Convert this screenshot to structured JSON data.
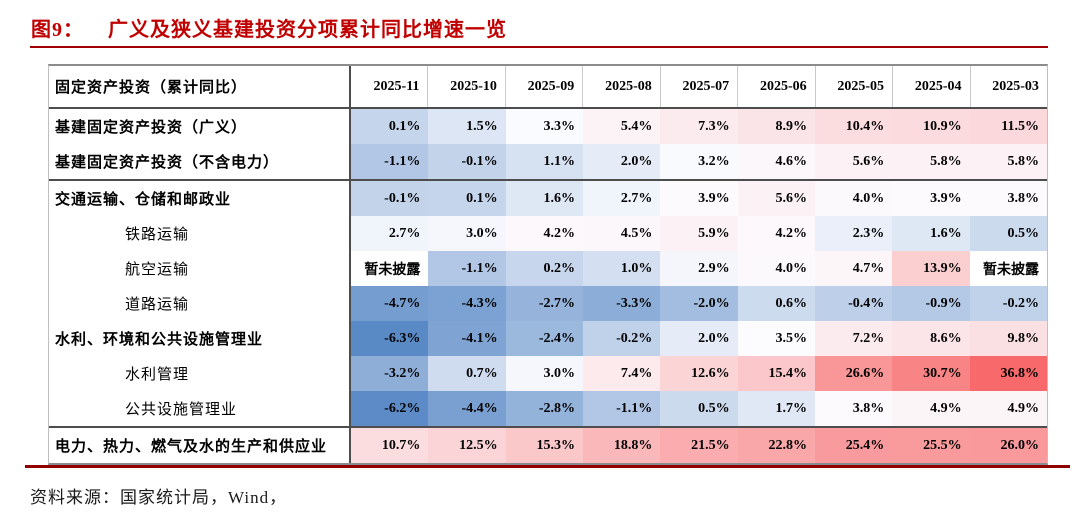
{
  "figure": {
    "number_label": "图9：",
    "title": "广义及狭义基建投资分项累计同比增速一览"
  },
  "source_note": "资料来源：国家统计局，Wind，",
  "colors": {
    "accent_red": "#C00000",
    "title_rule_red": "#A00000",
    "bottom_rule_red": "#900000",
    "heat_negative_blue": "#5A8AC6",
    "heat_neutral_white": "#FCFCFF",
    "heat_positive_red": "#F8696B"
  },
  "chart_data": {
    "type": "heatmap",
    "title": "图9：广义及狭义基建投资分项累计同比增速一览",
    "corner_label": "固定资产投资（累计同比）",
    "unit": "%",
    "missing_text": "暂未披露",
    "columns": [
      "2025-11",
      "2025-10",
      "2025-09",
      "2025-08",
      "2025-07",
      "2025-06",
      "2025-05",
      "2025-04",
      "2025-03"
    ],
    "rows": [
      {
        "label": "基建固定资产投资（广义）",
        "bold": true,
        "indent": 0,
        "group_end": false,
        "values": [
          0.1,
          1.5,
          3.3,
          5.4,
          7.3,
          8.9,
          10.4,
          10.9,
          11.5
        ]
      },
      {
        "label": "基建固定资产投资（不含电力）",
        "bold": true,
        "indent": 0,
        "group_end": true,
        "values": [
          -1.1,
          -0.1,
          1.1,
          2.0,
          3.2,
          4.6,
          5.6,
          5.8,
          5.8
        ]
      },
      {
        "label": "交通运输、仓储和邮政业",
        "bold": true,
        "indent": 0,
        "group_end": false,
        "values": [
          -0.1,
          0.1,
          1.6,
          2.7,
          3.9,
          5.6,
          4.0,
          3.9,
          3.8
        ]
      },
      {
        "label": "铁路运输",
        "bold": false,
        "indent": 1,
        "group_end": false,
        "values": [
          2.7,
          3.0,
          4.2,
          4.5,
          5.9,
          4.2,
          2.3,
          1.6,
          0.5
        ]
      },
      {
        "label": "航空运输",
        "bold": false,
        "indent": 1,
        "group_end": false,
        "values": [
          null,
          -1.1,
          0.2,
          1.0,
          2.9,
          4.0,
          4.7,
          13.9,
          null
        ]
      },
      {
        "label": "道路运输",
        "bold": false,
        "indent": 1,
        "group_end": false,
        "values": [
          -4.7,
          -4.3,
          -2.7,
          -3.3,
          -2.0,
          0.6,
          -0.4,
          -0.9,
          -0.2
        ]
      },
      {
        "label": "水利、环境和公共设施管理业",
        "bold": true,
        "indent": 0,
        "group_end": false,
        "values": [
          -6.3,
          -4.1,
          -2.4,
          -0.2,
          2.0,
          3.5,
          7.2,
          8.6,
          9.8
        ]
      },
      {
        "label": "水利管理",
        "bold": false,
        "indent": 1,
        "group_end": false,
        "values": [
          -3.2,
          0.7,
          3.0,
          7.4,
          12.6,
          15.4,
          26.6,
          30.7,
          36.8
        ]
      },
      {
        "label": "公共设施管理业",
        "bold": false,
        "indent": 1,
        "group_end": true,
        "values": [
          -6.2,
          -4.4,
          -2.8,
          -1.1,
          0.5,
          1.7,
          3.8,
          4.9,
          4.9
        ]
      },
      {
        "label": "电力、热力、燃气及水的生产和供应业",
        "bold": true,
        "indent": 0,
        "group_end": false,
        "values": [
          10.7,
          12.5,
          15.3,
          18.8,
          21.5,
          22.8,
          25.4,
          25.5,
          26.0
        ]
      }
    ],
    "color_scale": {
      "min_value": -6.3,
      "min_color": "#5A8AC6",
      "mid_value": 3.4,
      "mid_color": "#FCFCFF",
      "max_value": 36.8,
      "max_color": "#F8696B",
      "missing_color": "#FFFFFF"
    }
  }
}
